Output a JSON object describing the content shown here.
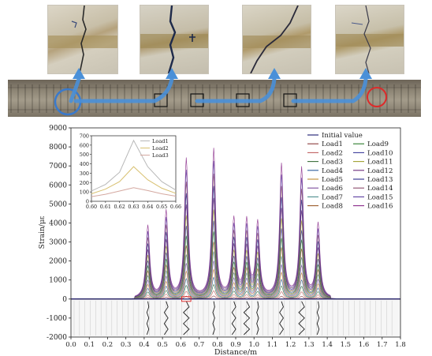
{
  "figure": {
    "photos": [
      {
        "name": "crack-photo-1"
      },
      {
        "name": "crack-photo-2"
      },
      {
        "name": "crack-photo-3"
      },
      {
        "name": "crack-photo-4"
      }
    ]
  },
  "chart_data": [
    {
      "type": "line",
      "xlabel": "Distance/m",
      "ylabel": "Strain/με",
      "xlim": [
        0.0,
        1.8
      ],
      "ylim": [
        -2000,
        9000
      ],
      "xticks": [
        "0.0",
        "0.1",
        "0.2",
        "0.3",
        "0.4",
        "0.5",
        "0.6",
        "0.7",
        "0.8",
        "0.9",
        "1.0",
        "1.1",
        "1.2",
        "1.3",
        "1.4",
        "1.5",
        "1.6",
        "1.7",
        "1.8"
      ],
      "yticks": [
        "-2000",
        "-1000",
        "0",
        "1000",
        "2000",
        "3000",
        "4000",
        "5000",
        "6000",
        "7000",
        "8000",
        "9000"
      ],
      "grid": false,
      "legend_position": "top-right",
      "legend": [
        "Initial value",
        "Load1",
        "Load2",
        "Load3",
        "Load4",
        "Load5",
        "Load6",
        "Load7",
        "Load8",
        "Load9",
        "Load10",
        "Load11",
        "Load12",
        "Load13",
        "Load14",
        "Load15",
        "Load16"
      ],
      "peaks": [
        {
          "x": 0.42,
          "max": 3800
        },
        {
          "x": 0.52,
          "max": 4550
        },
        {
          "x": 0.63,
          "max": 7300
        },
        {
          "x": 0.78,
          "max": 7800
        },
        {
          "x": 0.89,
          "max": 4100
        },
        {
          "x": 0.96,
          "max": 4000
        },
        {
          "x": 1.02,
          "max": 3900
        },
        {
          "x": 1.15,
          "max": 7000
        },
        {
          "x": 1.26,
          "max": 6800
        },
        {
          "x": 1.35,
          "max": 3900
        }
      ],
      "baseline": 0,
      "colors": {
        "Initial value": "#1a1a6e",
        "Load1": "#8b3a3a",
        "Load2": "#c06060",
        "Load3": "#3a6e3a",
        "Load4": "#2a5a9a",
        "Load5": "#c08a30",
        "Load6": "#7a4a9a",
        "Load7": "#4a8a8a",
        "Load8": "#9a5a2a",
        "Load9": "#2a7a2a",
        "Load10": "#3a3a9a",
        "Load11": "#a0a030",
        "Load12": "#6a2a7a",
        "Load13": "#2a2a8a",
        "Load14": "#8a4a6a",
        "Load15": "#5a3aa0",
        "Load16": "#8a2a8a"
      }
    },
    {
      "type": "line",
      "name": "inset",
      "xlim": [
        0.6,
        0.66
      ],
      "ylim": [
        0,
        700
      ],
      "xticks": [
        "0.60",
        "0.61",
        "0.62",
        "0.63",
        "0.64",
        "0.65",
        "0.66"
      ],
      "yticks": [
        "0",
        "100",
        "200",
        "300",
        "400",
        "500",
        "600",
        "700"
      ],
      "legend": [
        "Load1",
        "Load2",
        "Load3"
      ],
      "series": [
        {
          "name": "Load1",
          "x": [
            0.6,
            0.61,
            0.62,
            0.63,
            0.64,
            0.65,
            0.66
          ],
          "y": [
            110,
            180,
            310,
            650,
            370,
            210,
            120
          ]
        },
        {
          "name": "Load2",
          "x": [
            0.6,
            0.61,
            0.62,
            0.63,
            0.64,
            0.65,
            0.66
          ],
          "y": [
            80,
            130,
            210,
            370,
            230,
            140,
            85
          ]
        },
        {
          "name": "Load3",
          "x": [
            0.6,
            0.61,
            0.62,
            0.63,
            0.64,
            0.65,
            0.66
          ],
          "y": [
            50,
            75,
            110,
            145,
            115,
            80,
            55
          ]
        }
      ],
      "colors": {
        "Load1": "#b8b8b8",
        "Load2": "#d8c070",
        "Load3": "#d4a8a0"
      }
    }
  ]
}
